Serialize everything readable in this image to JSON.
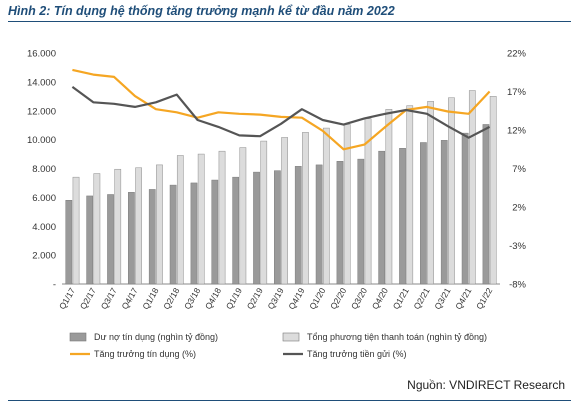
{
  "figure": {
    "title": "Hình 2: Tín dụng hệ thống tăng trưởng mạnh kể từ đầu năm 2022",
    "source": "Nguồn: VNDIRECT Research"
  },
  "colors": {
    "credit_bar": "#9a9a9a",
    "money_bar": "#dcdcdc",
    "credit_line": "#f5a623",
    "deposit_line": "#555555",
    "axis_text": "#333333",
    "title": "#1f4e79"
  },
  "chart_data": {
    "type": "bar",
    "categories": [
      "Q1/17",
      "Q2/17",
      "Q3/17",
      "Q4/17",
      "Q1/18",
      "Q2/18",
      "Q3/18",
      "Q4/18",
      "Q1/19",
      "Q2/19",
      "Q3/19",
      "Q4/19",
      "Q1/20",
      "Q2/20",
      "Q3/20",
      "Q4/20",
      "Q1/21",
      "Q2/21",
      "Q3/21",
      "Q4/21",
      "Q1/22"
    ],
    "y_left": {
      "ticks": [
        "-",
        "2.000",
        "4.000",
        "6.000",
        "8.000",
        "10.000",
        "12.000",
        "14.000",
        "16.000"
      ],
      "range": [
        0,
        16000
      ]
    },
    "y_right": {
      "ticks": [
        "-8%",
        "-3%",
        "2%",
        "7%",
        "12%",
        "17%",
        "22%"
      ],
      "range": [
        -8,
        22
      ]
    },
    "legend_placement": "bottom",
    "series": [
      {
        "name": "Dư nợ tín dụng (nghìn tỷ đồng)",
        "type": "bar",
        "axis": "left",
        "values": [
          5800,
          6100,
          6200,
          6350,
          6550,
          6850,
          7000,
          7200,
          7400,
          7750,
          7850,
          8150,
          8250,
          8500,
          8650,
          9200,
          9400,
          9800,
          9950,
          10450,
          11050
        ]
      },
      {
        "name": "Tổng phương tiện thanh toán (nghìn tỷ đồng)",
        "type": "bar",
        "axis": "left",
        "values": [
          7400,
          7650,
          7950,
          8050,
          8250,
          8900,
          9000,
          9200,
          9450,
          9900,
          10150,
          10500,
          10800,
          11050,
          11450,
          12100,
          12350,
          12650,
          12900,
          13400,
          13000
        ]
      },
      {
        "name": "Tăng trưởng tín dụng (%)",
        "type": "line",
        "axis": "right",
        "values": [
          19.8,
          19.2,
          18.9,
          16.4,
          14.7,
          14.3,
          13.6,
          14.3,
          14.1,
          14.0,
          13.7,
          13.6,
          11.9,
          9.5,
          10.1,
          12.4,
          14.6,
          15.0,
          14.4,
          14.1,
          17.0
        ]
      },
      {
        "name": "Tăng trưởng tiền gửi (%)",
        "type": "line",
        "axis": "right",
        "values": [
          17.6,
          15.6,
          15.4,
          15.0,
          15.6,
          16.6,
          13.3,
          12.4,
          11.3,
          11.2,
          12.8,
          14.7,
          13.3,
          12.7,
          13.5,
          14.1,
          14.6,
          14.1,
          12.5,
          11.0,
          12.4
        ]
      }
    ]
  }
}
